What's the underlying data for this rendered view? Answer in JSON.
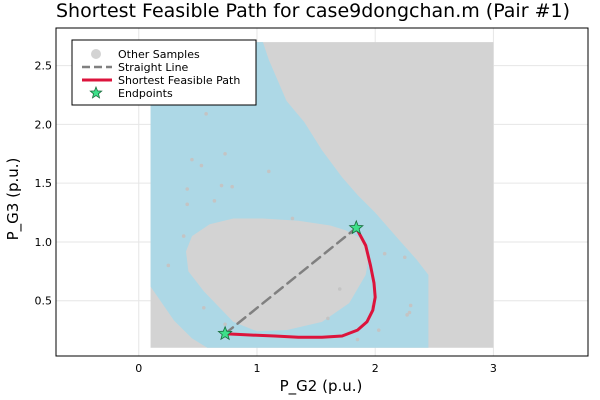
{
  "chart_data": {
    "type": "line",
    "title": "Shortest Feasible Path for case9dongchan.m (Pair #1)",
    "xlabel": "P_G2 (p.u.)",
    "ylabel": "P_G3 (p.u.)",
    "xlim": [
      -0.7,
      3.8
    ],
    "ylim": [
      0.03,
      2.82
    ],
    "xticks": [
      0,
      1,
      2,
      3
    ],
    "yticks": [
      0.5,
      1.0,
      1.5,
      2.0,
      2.5
    ],
    "xtick_labels": [
      "0",
      "1",
      "2",
      "3"
    ],
    "ytick_labels": [
      "0.5",
      "1.0",
      "1.5",
      "2.0",
      "2.5"
    ],
    "grid": true,
    "legend_position": "top-left",
    "legend": [
      {
        "label": "Other Samples",
        "kind": "marker-circle",
        "color": "#d3d3d3"
      },
      {
        "label": "Straight Line",
        "kind": "dashed-line",
        "color": "#808080"
      },
      {
        "label": "Shortest Feasible Path",
        "kind": "line",
        "color": "#dc143c"
      },
      {
        "label": "Endpoints",
        "kind": "marker-star",
        "color": "#3ee08a"
      }
    ],
    "sampled_region": {
      "x": [
        0.1,
        3.0
      ],
      "y": [
        0.1,
        2.7
      ],
      "color": "#d3d3d3"
    },
    "feasible_region": {
      "color": "#add8e6",
      "outer": [
        [
          0.1,
          2.7
        ],
        [
          1.05,
          2.7
        ],
        [
          1.1,
          2.55
        ],
        [
          1.25,
          2.2
        ],
        [
          1.4,
          2.02
        ],
        [
          1.55,
          1.78
        ],
        [
          1.72,
          1.55
        ],
        [
          1.85,
          1.4
        ],
        [
          2.0,
          1.25
        ],
        [
          2.2,
          1.02
        ],
        [
          2.35,
          0.85
        ],
        [
          2.45,
          0.72
        ],
        [
          2.45,
          0.1
        ],
        [
          0.58,
          0.1
        ],
        [
          0.45,
          0.18
        ],
        [
          0.3,
          0.33
        ],
        [
          0.1,
          0.62
        ]
      ],
      "inner": [
        [
          0.55,
          0.58
        ],
        [
          0.42,
          0.75
        ],
        [
          0.4,
          0.92
        ],
        [
          0.45,
          1.05
        ],
        [
          0.6,
          1.15
        ],
        [
          0.8,
          1.2
        ],
        [
          1.05,
          1.2
        ],
        [
          1.35,
          1.18
        ],
        [
          1.62,
          1.14
        ],
        [
          1.75,
          1.1
        ],
        [
          1.9,
          1.02
        ],
        [
          1.95,
          0.9
        ],
        [
          1.92,
          0.72
        ],
        [
          1.78,
          0.48
        ],
        [
          1.55,
          0.32
        ],
        [
          1.25,
          0.25
        ],
        [
          1.0,
          0.24
        ],
        [
          0.8,
          0.32
        ]
      ]
    },
    "sample_points": {
      "x": [
        0.25,
        0.38,
        0.41,
        0.41,
        0.45,
        0.53,
        0.57,
        0.64,
        0.7,
        0.79,
        0.73,
        0.73,
        1.1,
        1.3,
        1.7,
        1.85,
        1.98,
        2.03,
        2.08,
        2.25,
        2.27,
        2.3,
        2.29,
        1.6,
        0.55
      ],
      "y": [
        0.8,
        1.05,
        1.32,
        1.45,
        1.7,
        1.65,
        2.09,
        1.35,
        1.48,
        1.47,
        1.75,
        0.3,
        1.6,
        1.2,
        0.6,
        0.17,
        0.45,
        0.25,
        0.9,
        0.87,
        0.38,
        0.46,
        0.4,
        0.35,
        0.44
      ]
    },
    "series": [
      {
        "name": "Straight Line",
        "style": "dashed",
        "color": "#808080",
        "x": [
          0.73,
          1.84
        ],
        "y": [
          0.22,
          1.12
        ]
      },
      {
        "name": "Shortest Feasible Path",
        "style": "solid",
        "color": "#dc143c",
        "x": [
          0.73,
          0.9,
          1.15,
          1.35,
          1.55,
          1.72,
          1.85,
          1.93,
          1.98,
          2.0,
          1.99,
          1.96,
          1.92,
          1.84
        ],
        "y": [
          0.22,
          0.21,
          0.2,
          0.19,
          0.19,
          0.2,
          0.25,
          0.32,
          0.42,
          0.53,
          0.65,
          0.8,
          0.97,
          1.12
        ]
      },
      {
        "name": "Endpoints",
        "style": "marker-star",
        "color": "#3ee08a",
        "x": [
          0.73,
          1.84
        ],
        "y": [
          0.22,
          1.12
        ]
      }
    ]
  }
}
